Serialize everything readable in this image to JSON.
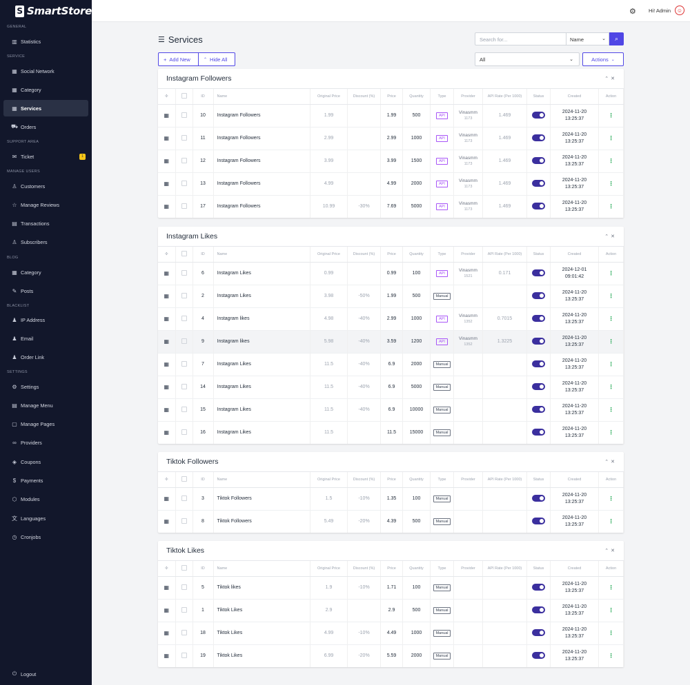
{
  "app": {
    "logo_text": "SmartStore"
  },
  "topbar": {
    "user_label": "Hi! Admin"
  },
  "sidebar": {
    "sections": [
      {
        "label": "GENERAL",
        "items": [
          {
            "label": "Statistics",
            "icon": "chart-bar-icon"
          }
        ]
      },
      {
        "label": "SERVICE",
        "items": [
          {
            "label": "Social Network",
            "icon": "grid-icon"
          },
          {
            "label": "Category",
            "icon": "grid-icon"
          },
          {
            "label": "Services",
            "icon": "grid-icon",
            "active": true
          },
          {
            "label": "Orders",
            "icon": "cart-icon"
          }
        ]
      },
      {
        "label": "SUPPORT AREA",
        "items": [
          {
            "label": "Ticket",
            "icon": "chat-icon",
            "badge": "1"
          }
        ]
      },
      {
        "label": "MANAGE USERS",
        "items": [
          {
            "label": "Customers",
            "icon": "users-icon"
          },
          {
            "label": "Manage Reviews",
            "icon": "star-icon"
          },
          {
            "label": "Transactions",
            "icon": "file-icon"
          },
          {
            "label": "Subscribers",
            "icon": "user-plus-icon"
          }
        ]
      },
      {
        "label": "BLOG",
        "items": [
          {
            "label": "Category",
            "icon": "grid-icon"
          },
          {
            "label": "Posts",
            "icon": "edit-icon"
          }
        ]
      },
      {
        "label": "BLACKLIST",
        "items": [
          {
            "label": "IP Address",
            "icon": "user-lock-icon"
          },
          {
            "label": "Email",
            "icon": "user-lock-icon"
          },
          {
            "label": "Order Link",
            "icon": "user-lock-icon"
          }
        ]
      },
      {
        "label": "SETTINGS",
        "items": [
          {
            "label": "Settings",
            "icon": "gear-icon"
          },
          {
            "label": "Manage Menu",
            "icon": "menu-icon"
          },
          {
            "label": "Manage Pages",
            "icon": "page-icon"
          },
          {
            "label": "Providers",
            "icon": "link-icon"
          },
          {
            "label": "Coupons",
            "icon": "tag-icon"
          },
          {
            "label": "Payments",
            "icon": "dollar-icon"
          },
          {
            "label": "Modules",
            "icon": "cube-icon"
          },
          {
            "label": "Languages",
            "icon": "language-icon"
          },
          {
            "label": "Cronjobs",
            "icon": "clock-icon"
          }
        ]
      }
    ],
    "logout": "Logout"
  },
  "page": {
    "title": "Services",
    "search_placeholder": "Search for...",
    "search_field": "Name",
    "add_new": "Add New",
    "hide_all": "Hide All",
    "filter_value": "All",
    "actions": "Actions"
  },
  "columns": [
    "ID",
    "Name",
    "Original Price",
    "Discount (%)",
    "Price",
    "Quantity",
    "Type",
    "Provider",
    "API Rate (Per 1000)",
    "Status",
    "Created",
    "Action"
  ],
  "groups": [
    {
      "title": "Instagram Followers",
      "rows": [
        {
          "id": "10",
          "name": "Instagram Followers",
          "orig": "1.99",
          "disc": "",
          "price": "1.99",
          "qty": "500",
          "type": "API",
          "prov": "Vinasmm",
          "prov_id": "1173",
          "rate": "1.469",
          "date": "2024-11-20",
          "time": "13:25:37"
        },
        {
          "id": "11",
          "name": "Instagram Followers",
          "orig": "2.99",
          "disc": "",
          "price": "2.99",
          "qty": "1000",
          "type": "API",
          "prov": "Vinasmm",
          "prov_id": "1173",
          "rate": "1.469",
          "date": "2024-11-20",
          "time": "13:25:37"
        },
        {
          "id": "12",
          "name": "Instagram Followers",
          "orig": "3.99",
          "disc": "",
          "price": "3.99",
          "qty": "1500",
          "type": "API",
          "prov": "Vinasmm",
          "prov_id": "1173",
          "rate": "1.469",
          "date": "2024-11-20",
          "time": "13:25:37"
        },
        {
          "id": "13",
          "name": "Instagram Followers",
          "orig": "4.99",
          "disc": "",
          "price": "4.99",
          "qty": "2000",
          "type": "API",
          "prov": "Vinasmm",
          "prov_id": "1173",
          "rate": "1.469",
          "date": "2024-11-20",
          "time": "13:25:37"
        },
        {
          "id": "17",
          "name": "Instagram Followers",
          "orig": "10.99",
          "disc": "-30%",
          "price": "7.69",
          "qty": "5000",
          "type": "API",
          "prov": "Vinasmm",
          "prov_id": "1173",
          "rate": "1.469",
          "date": "2024-11-20",
          "time": "13:25:37"
        }
      ]
    },
    {
      "title": "Instagram Likes",
      "rows": [
        {
          "id": "6",
          "name": "Instagram Likes",
          "orig": "0.99",
          "disc": "",
          "price": "0.99",
          "qty": "100",
          "type": "API",
          "prov": "Vinasmm",
          "prov_id": "1521",
          "rate": "0.171",
          "date": "2024-12-01",
          "time": "09:01:42"
        },
        {
          "id": "2",
          "name": "Instagram Likes",
          "orig": "3.98",
          "disc": "-50%",
          "price": "1.99",
          "qty": "500",
          "type": "Manual",
          "prov": "",
          "prov_id": "",
          "rate": "",
          "date": "2024-11-20",
          "time": "13:25:37"
        },
        {
          "id": "4",
          "name": "Instagram likes",
          "orig": "4.98",
          "disc": "-40%",
          "price": "2.99",
          "qty": "1000",
          "type": "API",
          "prov": "Vinasmm",
          "prov_id": "1352",
          "rate": "0.7015",
          "date": "2024-11-20",
          "time": "13:25:37"
        },
        {
          "id": "9",
          "name": "Instagram likes",
          "orig": "5.98",
          "disc": "-40%",
          "price": "3.59",
          "qty": "1200",
          "type": "API",
          "prov": "Vinasmm",
          "prov_id": "1352",
          "rate": "1.3225",
          "date": "2024-11-20",
          "time": "13:25:37",
          "hl": true
        },
        {
          "id": "7",
          "name": "Instagram Likes",
          "orig": "11.5",
          "disc": "-40%",
          "price": "6.9",
          "qty": "2000",
          "type": "Manual",
          "prov": "",
          "prov_id": "",
          "rate": "",
          "date": "2024-11-20",
          "time": "13:25:37"
        },
        {
          "id": "14",
          "name": "Instagram Likes",
          "orig": "11.5",
          "disc": "-40%",
          "price": "6.9",
          "qty": "5000",
          "type": "Manual",
          "prov": "",
          "prov_id": "",
          "rate": "",
          "date": "2024-11-20",
          "time": "13:25:37"
        },
        {
          "id": "15",
          "name": "Instagram Likes",
          "orig": "11.5",
          "disc": "-40%",
          "price": "6.9",
          "qty": "10000",
          "type": "Manual",
          "prov": "",
          "prov_id": "",
          "rate": "",
          "date": "2024-11-20",
          "time": "13:25:37"
        },
        {
          "id": "16",
          "name": "Instagram Likes",
          "orig": "11.5",
          "disc": "",
          "price": "11.5",
          "qty": "15000",
          "type": "Manual",
          "prov": "",
          "prov_id": "",
          "rate": "",
          "date": "2024-11-20",
          "time": "13:25:37"
        }
      ]
    },
    {
      "title": "Tiktok Followers",
      "rows": [
        {
          "id": "3",
          "name": "Tiktok Followers",
          "orig": "1.5",
          "disc": "-10%",
          "price": "1.35",
          "qty": "100",
          "type": "Manual",
          "prov": "",
          "prov_id": "",
          "rate": "",
          "date": "2024-11-20",
          "time": "13:25:37"
        },
        {
          "id": "8",
          "name": "Tiktok Followers",
          "orig": "5.49",
          "disc": "-20%",
          "price": "4.39",
          "qty": "500",
          "type": "Manual",
          "prov": "",
          "prov_id": "",
          "rate": "",
          "date": "2024-11-20",
          "time": "13:25:37"
        }
      ]
    },
    {
      "title": "Tiktok Likes",
      "rows": [
        {
          "id": "5",
          "name": "Tiktok likes",
          "orig": "1.9",
          "disc": "-10%",
          "price": "1.71",
          "qty": "100",
          "type": "Manual",
          "prov": "",
          "prov_id": "",
          "rate": "",
          "date": "2024-11-20",
          "time": "13:25:37"
        },
        {
          "id": "1",
          "name": "Tiktok Likes",
          "orig": "2.9",
          "disc": "",
          "price": "2.9",
          "qty": "500",
          "type": "Manual",
          "prov": "",
          "prov_id": "",
          "rate": "",
          "date": "2024-11-20",
          "time": "13:25:37"
        },
        {
          "id": "18",
          "name": "Tiktok Likes",
          "orig": "4.99",
          "disc": "-10%",
          "price": "4.49",
          "qty": "1000",
          "type": "Manual",
          "prov": "",
          "prov_id": "",
          "rate": "",
          "date": "2024-11-20",
          "time": "13:25:37"
        },
        {
          "id": "19",
          "name": "Tiktok Likes",
          "orig": "6.99",
          "disc": "-20%",
          "price": "5.59",
          "qty": "2000",
          "type": "Manual",
          "prov": "",
          "prov_id": "",
          "rate": "",
          "date": "2024-11-20",
          "time": "13:25:37"
        }
      ]
    }
  ],
  "colors": {
    "accent": "#4f46e5",
    "sidebar_bg": "#12172b",
    "toggle_on": "#3b2f9e",
    "api_badge": "#a855f7"
  }
}
